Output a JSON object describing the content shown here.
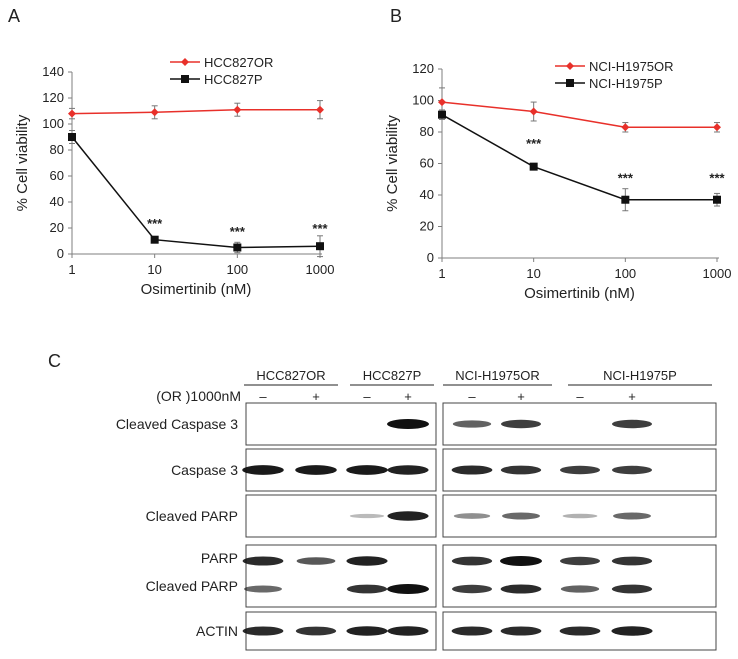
{
  "chart_data": [
    {
      "panel": "A",
      "type": "line",
      "x": [
        1,
        10,
        100,
        1000
      ],
      "xscale": "log",
      "xticks": [
        "1",
        "10",
        "100",
        "1000"
      ],
      "xlabel": "Osimertinib (nM)",
      "ylabel": "% Cell viability",
      "ylim": [
        0,
        140
      ],
      "yticks": [
        0,
        20,
        40,
        60,
        80,
        100,
        120,
        140
      ],
      "legend": "top-right",
      "series": [
        {
          "name": "HCC827OR",
          "color": "#e8302a",
          "marker": "diamond",
          "values": [
            108,
            109,
            111,
            111
          ],
          "errors": [
            4,
            5,
            5,
            7
          ]
        },
        {
          "name": "HCC827P",
          "color": "#111111",
          "marker": "square",
          "values": [
            90,
            11,
            5,
            6
          ],
          "errors": [
            5,
            2,
            4,
            8
          ]
        }
      ],
      "annotations": [
        {
          "x": 10,
          "y": 20,
          "text": "***"
        },
        {
          "x": 100,
          "y": 14,
          "text": "***"
        },
        {
          "x": 1000,
          "y": 16,
          "text": "***"
        }
      ]
    },
    {
      "panel": "B",
      "type": "line",
      "x": [
        1,
        10,
        100,
        1000
      ],
      "xscale": "log",
      "xticks": [
        "1",
        "10",
        "100",
        "1000"
      ],
      "xlabel": "Osimertinib (nM)",
      "ylabel": "% Cell viability",
      "ylim": [
        0,
        120
      ],
      "yticks": [
        0,
        20,
        40,
        60,
        80,
        100,
        120
      ],
      "legend": "top-right",
      "series": [
        {
          "name": "NCI-H1975OR",
          "color": "#e8302a",
          "marker": "diamond",
          "values": [
            99,
            93,
            83,
            83
          ],
          "errors": [
            9,
            6,
            3,
            3
          ]
        },
        {
          "name": "NCI-H1975P",
          "color": "#111111",
          "marker": "square",
          "values": [
            91,
            58,
            37,
            37
          ],
          "errors": [
            3,
            2,
            7,
            4
          ]
        }
      ],
      "annotations": [
        {
          "x": 10,
          "y": 70,
          "text": "***"
        },
        {
          "x": 100,
          "y": 48,
          "text": "***"
        },
        {
          "x": 1000,
          "y": 48,
          "text": "***"
        }
      ]
    }
  ],
  "blot": {
    "panel": "C",
    "groups": [
      "HCC827OR",
      "HCC827P",
      "NCI-H1975OR",
      "NCI-H1975P"
    ],
    "treatment_label": "(OR )1000nM",
    "signs": [
      "–",
      "+",
      "–",
      "+",
      "–",
      "+",
      "–",
      "+"
    ],
    "rows": [
      {
        "labels": [
          "Cleaved Caspase 3"
        ],
        "bands": [
          [
            0,
            0,
            0,
            1.0,
            0.55,
            0.75,
            0,
            0.75
          ]
        ]
      },
      {
        "labels": [
          "Caspase 3"
        ],
        "bands": [
          [
            0.95,
            0.95,
            0.95,
            0.9,
            0.85,
            0.8,
            0.75,
            0.75
          ]
        ]
      },
      {
        "labels": [
          "Cleaved PARP"
        ],
        "bands": [
          [
            0,
            0,
            0.05,
            0.9,
            0.3,
            0.5,
            0.1,
            0.5
          ]
        ]
      },
      {
        "labels": [
          "PARP",
          "Cleaved PARP"
        ],
        "bands": [
          [
            0.85,
            0.6,
            0.9,
            0,
            0.8,
            1.0,
            0.75,
            0.8
          ],
          [
            0.5,
            0,
            0.8,
            1.0,
            0.75,
            0.85,
            0.55,
            0.8
          ]
        ]
      },
      {
        "labels": [
          "ACTIN"
        ],
        "bands": [
          [
            0.85,
            0.8,
            0.9,
            0.9,
            0.85,
            0.85,
            0.85,
            0.9
          ]
        ]
      }
    ]
  },
  "panel_letters": [
    "A",
    "B",
    "C"
  ]
}
